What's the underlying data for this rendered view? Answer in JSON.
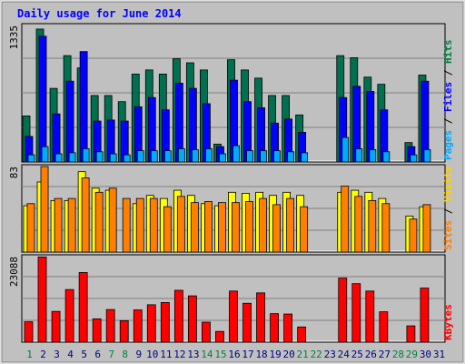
{
  "chart_data": [
    {
      "type": "bar",
      "title": "Daily usage for June 2014",
      "panel": "top",
      "ymax_label": "1335",
      "ylim": [
        0,
        1335
      ],
      "x": [
        1,
        2,
        3,
        4,
        5,
        6,
        7,
        8,
        9,
        10,
        11,
        12,
        13,
        14,
        15,
        16,
        17,
        18,
        19,
        20,
        21,
        22,
        23,
        24,
        25,
        26,
        27,
        28,
        29,
        30,
        31
      ],
      "right_labels": [
        {
          "text": "Pages",
          "color": "#00aaff"
        },
        {
          "text": " / ",
          "color": "#000000"
        },
        {
          "text": "Files",
          "color": "#0000ff"
        },
        {
          "text": " / ",
          "color": "#000000"
        },
        {
          "text": "Hits",
          "color": "#008040"
        }
      ],
      "series": [
        {
          "name": "Hits",
          "color": "#007050",
          "values": [
            450,
            1300,
            720,
            1040,
            920,
            650,
            650,
            590,
            860,
            900,
            860,
            1010,
            970,
            900,
            175,
            1000,
            900,
            820,
            650,
            650,
            460,
            0,
            0,
            1040,
            1020,
            830,
            760,
            0,
            190,
            850,
            0
          ]
        },
        {
          "name": "Files",
          "color": "#0000ff",
          "values": [
            250,
            1230,
            470,
            790,
            1080,
            400,
            410,
            400,
            540,
            630,
            510,
            770,
            720,
            570,
            150,
            800,
            590,
            530,
            380,
            420,
            290,
            0,
            0,
            630,
            740,
            690,
            510,
            0,
            150,
            790,
            0
          ]
        },
        {
          "name": "Pages",
          "color": "#00aaff",
          "values": [
            70,
            150,
            80,
            90,
            130,
            100,
            80,
            70,
            110,
            110,
            110,
            130,
            120,
            130,
            80,
            160,
            110,
            110,
            110,
            100,
            90,
            0,
            0,
            240,
            130,
            120,
            100,
            0,
            70,
            120,
            0
          ]
        }
      ]
    },
    {
      "type": "bar",
      "panel": "middle",
      "ymax_label": "83",
      "ylim": [
        0,
        83
      ],
      "right_labels": [
        {
          "text": "Sites",
          "color": "#ff8000"
        },
        {
          "text": " / ",
          "color": "#000000"
        },
        {
          "text": "Visits",
          "color": "#ffd000"
        }
      ],
      "series": [
        {
          "name": "Visits",
          "color": "#ffff00",
          "values": [
            45,
            68,
            50,
            50,
            78,
            62,
            60,
            0,
            47,
            55,
            52,
            60,
            55,
            47,
            45,
            58,
            57,
            58,
            55,
            58,
            55,
            0,
            0,
            58,
            60,
            58,
            52,
            0,
            35,
            44,
            0
          ]
        },
        {
          "name": "Sites",
          "color": "#ff8000",
          "values": [
            47,
            83,
            52,
            52,
            72,
            58,
            62,
            52,
            52,
            52,
            44,
            54,
            48,
            49,
            48,
            48,
            49,
            52,
            46,
            52,
            44,
            0,
            0,
            64,
            54,
            50,
            47,
            0,
            32,
            46,
            0
          ]
        }
      ]
    },
    {
      "type": "bar",
      "panel": "bottom",
      "ymax_label": "23088",
      "ylim": [
        0,
        23088
      ],
      "right_labels": [
        {
          "text": "KBytes",
          "color": "#ff0000"
        }
      ],
      "series": [
        {
          "name": "KBytes",
          "color": "#ff0000",
          "values": [
            5500,
            23000,
            8300,
            14200,
            18800,
            6300,
            8800,
            5800,
            8700,
            10100,
            10700,
            14000,
            12500,
            5400,
            2900,
            13800,
            10500,
            13300,
            7700,
            7600,
            4100,
            0,
            0,
            17300,
            15800,
            13800,
            8200,
            0,
            4400,
            14600,
            0
          ]
        }
      ]
    }
  ],
  "x_axis": {
    "labels": [
      "1",
      "2",
      "3",
      "4",
      "5",
      "6",
      "7",
      "8",
      "9",
      "10",
      "11",
      "12",
      "13",
      "14",
      "15",
      "16",
      "17",
      "18",
      "19",
      "20",
      "21",
      "22",
      "23",
      "24",
      "25",
      "26",
      "27",
      "28",
      "29",
      "30",
      "31"
    ],
    "weekend_days": [
      1,
      7,
      8,
      14,
      15,
      21,
      22,
      28,
      29
    ],
    "weekday_color": "#000080",
    "weekend_color": "#008040"
  },
  "colors": {
    "background": "#c0c0c0",
    "plot_bg": "#c0c0c0",
    "title": "#0000ff",
    "grid": "#808080"
  }
}
